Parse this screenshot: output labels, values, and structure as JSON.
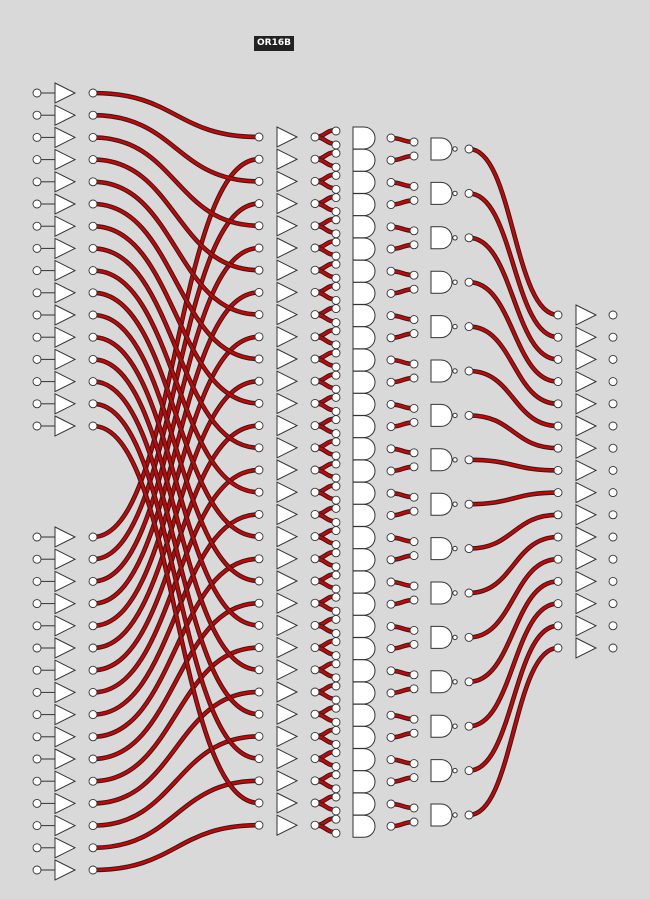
{
  "title": "OR16B",
  "colors": {
    "background": "#d9d9d9",
    "wire": "#d40000",
    "wire_outline": "#222222",
    "pin": "#ffffff",
    "badge": "#222222"
  },
  "circuit": {
    "input_bus_a_bits": 16,
    "input_bus_b_bits": 16,
    "output_bits": 16,
    "input_buffers": 32,
    "mid_buffers": 32,
    "and_gates": 32,
    "nand_gates": 16,
    "output_buffers": 16
  }
}
